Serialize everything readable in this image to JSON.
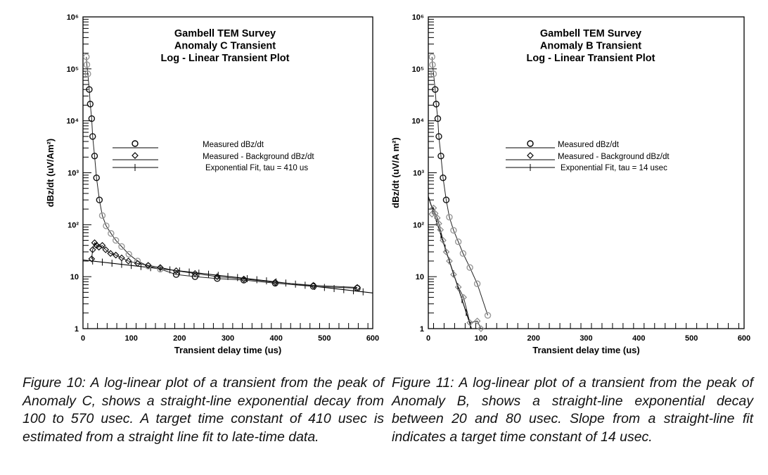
{
  "chart_data": [
    {
      "type": "line",
      "y_scale": "log",
      "title_lines": [
        "Gambell TEM Survey",
        "Anomaly C Transient",
        "Log - Linear Transient Plot"
      ],
      "xlabel": "Transient delay time (us)",
      "ylabel": "dBz/dt (uV/Am²)",
      "xlim": [
        0,
        600
      ],
      "ylim": [
        1,
        1000000
      ],
      "x_ticks": [
        "0",
        "100",
        "200",
        "300",
        "400",
        "500",
        "600"
      ],
      "y_ticks": [
        "1",
        "10",
        "10²",
        "10³",
        "10⁴",
        "10⁵",
        "10⁶"
      ],
      "legend": [
        "Measured  dBz/dt",
        "Measured  - Background  dBz/dt",
        "Exponential  Fit,  tau = 410 us"
      ],
      "legend_placement": "center",
      "series": [
        {
          "name": "Measured dBz/dt",
          "marker": "circle",
          "x": [
            7,
            8,
            10,
            13,
            15,
            18,
            20,
            24,
            28,
            34,
            40,
            48,
            58,
            68,
            80,
            95,
            113,
            135,
            160,
            193,
            232,
            278,
            333,
            398,
            477,
            568
          ],
          "y": [
            170000,
            120000,
            80000,
            40000,
            21000,
            11000,
            5000,
            2100,
            800,
            300,
            150,
            95,
            68,
            50,
            38,
            27,
            20,
            16,
            14,
            11,
            10,
            9.2,
            8.6,
            7.5,
            6.5,
            6
          ]
        },
        {
          "name": "Measured - Background dBz/dt",
          "marker": "diamond",
          "x": [
            18,
            20,
            24,
            28,
            33,
            40,
            47,
            57,
            68,
            80,
            94,
            113,
            135,
            160,
            193,
            232,
            278,
            333,
            398,
            477,
            568
          ],
          "y": [
            22,
            33,
            45,
            40,
            37,
            40,
            33,
            28,
            26,
            23,
            20,
            18,
            16.5,
            15,
            13,
            11.5,
            10,
            9,
            7.8,
            6.8,
            6.2
          ]
        },
        {
          "name": "Exponential Fit",
          "marker": "plus",
          "amplitude": 21,
          "tau": 410,
          "x_range": [
            0,
            600
          ]
        }
      ]
    },
    {
      "type": "line",
      "y_scale": "log",
      "title_lines": [
        "Gambell  TEM Survey",
        "Anomaly  B Transient",
        "Log - Linear  Transient Plot"
      ],
      "xlabel": "Transient  delay  time  (us)",
      "ylabel": "dBz/dt (uV/A m²)",
      "xlim": [
        0,
        600
      ],
      "ylim": [
        1,
        1000000
      ],
      "x_ticks": [
        "0",
        "100",
        "200",
        "300",
        "400",
        "500",
        "600"
      ],
      "y_ticks": [
        "1",
        "10",
        "10²",
        "10³",
        "10⁴",
        "10⁵",
        "10⁶"
      ],
      "legend": [
        "Measured dBz/dt",
        "Measured - Background dBz/dt",
        "Exponential  Fit, tau = 14 usec"
      ],
      "legend_placement": "center",
      "series": [
        {
          "name": "Measured dBz/dt",
          "marker": "circle",
          "x": [
            7,
            8,
            10,
            13,
            15,
            18,
            20,
            24,
            28,
            34,
            40,
            48,
            57,
            66,
            79,
            93,
            113
          ],
          "y": [
            170000,
            120000,
            80000,
            40000,
            21000,
            11000,
            5000,
            2100,
            800,
            300,
            140,
            78,
            47,
            28,
            15,
            7.3,
            1.8
          ]
        },
        {
          "name": "Measured - Background dBz/dt",
          "marker": "diamond",
          "x": [
            7,
            10,
            13,
            17,
            20,
            23,
            28,
            34,
            40,
            48,
            57,
            67,
            79,
            93,
            100
          ],
          "y": [
            160,
            210,
            165,
            135,
            105,
            80,
            50,
            30,
            20,
            11,
            6.3,
            4,
            1.3,
            1.4,
            1.0
          ]
        },
        {
          "name": "Exponential Fit",
          "marker": "plus",
          "amplitude": 350,
          "tau": 14,
          "x_range": [
            0,
            82
          ]
        }
      ]
    }
  ],
  "captions": [
    "Figure 10: A log-linear plot of a transient from the peak of Anomaly C, shows a straight-line exponential decay from 100 to 570 usec. A target time constant of 410 usec is estimated from a straight line fit to late-time data.",
    "Figure 11: A log-linear plot of a transient from the peak of Anomaly B, shows a straight-line exponential decay between 20 and 80 usec.  Slope from a straight-line fit indicates a target time constant of 14 usec."
  ]
}
